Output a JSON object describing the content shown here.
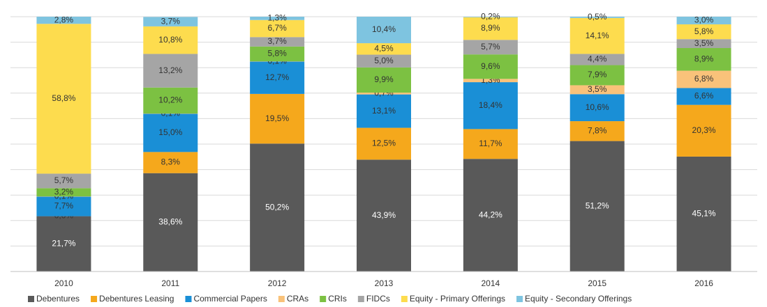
{
  "chart_data": {
    "type": "stacked_bar",
    "categories": [
      "2010",
      "2011",
      "2012",
      "2013",
      "2014",
      "2015",
      "2016"
    ],
    "ylim": [
      0,
      100
    ],
    "yticks": [
      0,
      10,
      20,
      30,
      40,
      50,
      60,
      70,
      80,
      90,
      100
    ],
    "grid": true,
    "legend": "bottom",
    "series": [
      {
        "name": "Debentures",
        "color": "#595959",
        "values": [
          21.7,
          38.6,
          50.2,
          43.9,
          44.2,
          51.2,
          45.1
        ],
        "value_labels": [
          "21,7%",
          "38,6%",
          "50,2%",
          "43,9%",
          "44,2%",
          "51,2%",
          "45,1%"
        ]
      },
      {
        "name": "Debentures Leasing",
        "color": "#f5a81c",
        "values": [
          0.0,
          8.3,
          19.5,
          12.5,
          11.7,
          7.8,
          20.3
        ],
        "value_labels": [
          "0,0%",
          "8,3%",
          "19,5%",
          "12,5%",
          "11,7%",
          "7,8%",
          "20,3%"
        ]
      },
      {
        "name": "Commercial Papers",
        "color": "#1a8fd6",
        "values": [
          7.7,
          15.0,
          12.7,
          13.1,
          18.4,
          10.6,
          6.6
        ],
        "value_labels": [
          "7,7%",
          "15,0%",
          "12,7%",
          "13,1%",
          "18,4%",
          "10,6%",
          "6,6%"
        ]
      },
      {
        "name": "CRAs",
        "color": "#f9c27a",
        "values": [
          0.1,
          0.1,
          0.1,
          0.7,
          1.3,
          3.5,
          6.8
        ],
        "value_labels": [
          "0,1%",
          "0,1%",
          "0,1%",
          "0,7%",
          "1,3%",
          "3,5%",
          "6,8%"
        ]
      },
      {
        "name": "CRIs",
        "color": "#7cc142",
        "values": [
          3.2,
          10.2,
          5.8,
          9.9,
          9.6,
          7.9,
          8.9
        ],
        "value_labels": [
          "3,2%",
          "10,2%",
          "5,8%",
          "9,9%",
          "9,6%",
          "7,9%",
          "8,9%"
        ]
      },
      {
        "name": "FIDCs",
        "color": "#a5a5a5",
        "values": [
          5.7,
          13.2,
          3.7,
          5.0,
          5.7,
          4.4,
          3.5
        ],
        "value_labels": [
          "5,7%",
          "13,2%",
          "3,7%",
          "5,0%",
          "5,7%",
          "4,4%",
          "3,5%"
        ]
      },
      {
        "name": "Equity - Primary Offerings",
        "color": "#fddc4e",
        "values": [
          58.8,
          10.8,
          6.7,
          4.5,
          8.9,
          14.1,
          5.8
        ],
        "value_labels": [
          "58,8%",
          "10,8%",
          "6,7%",
          "4,5%",
          "8,9%",
          "14,1%",
          "5,8%"
        ]
      },
      {
        "name": "Equity - Secondary Offerings",
        "color": "#7ec4e0",
        "values": [
          2.8,
          3.7,
          1.3,
          10.4,
          0.2,
          0.5,
          3.0
        ],
        "value_labels": [
          "2,8%",
          "3,7%",
          "1,3%",
          "10,4%",
          "0,2%",
          "0,5%",
          "3,0%"
        ]
      }
    ]
  }
}
